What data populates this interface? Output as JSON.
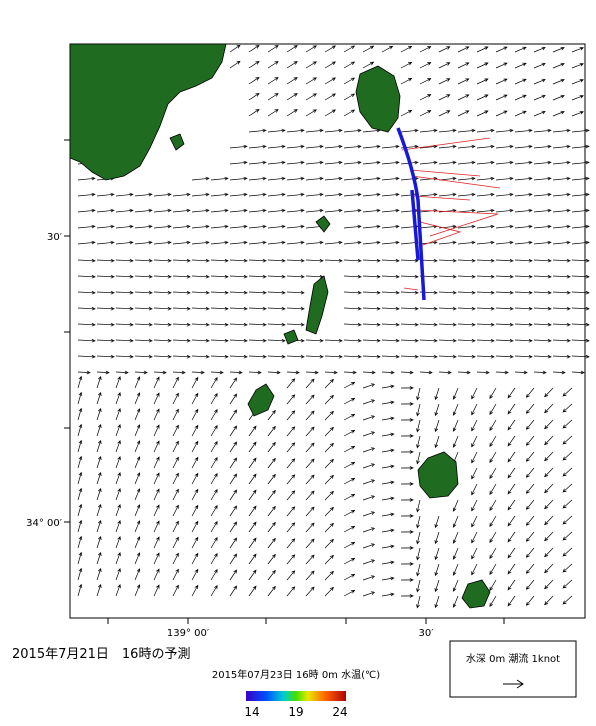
{
  "map": {
    "axes": {
      "left_labels": [
        "30′",
        "34° 00′"
      ],
      "bottom_labels": [
        "139° 00′",
        "30′"
      ]
    },
    "title": "2015年7月21日　16時の予測",
    "colorbar": {
      "caption": "2015年07月23日 16時 0m 水温(℃)",
      "ticks": [
        14,
        19,
        24
      ]
    },
    "legend": {
      "text": "水深 0m 潮流 1knot"
    }
  }
}
